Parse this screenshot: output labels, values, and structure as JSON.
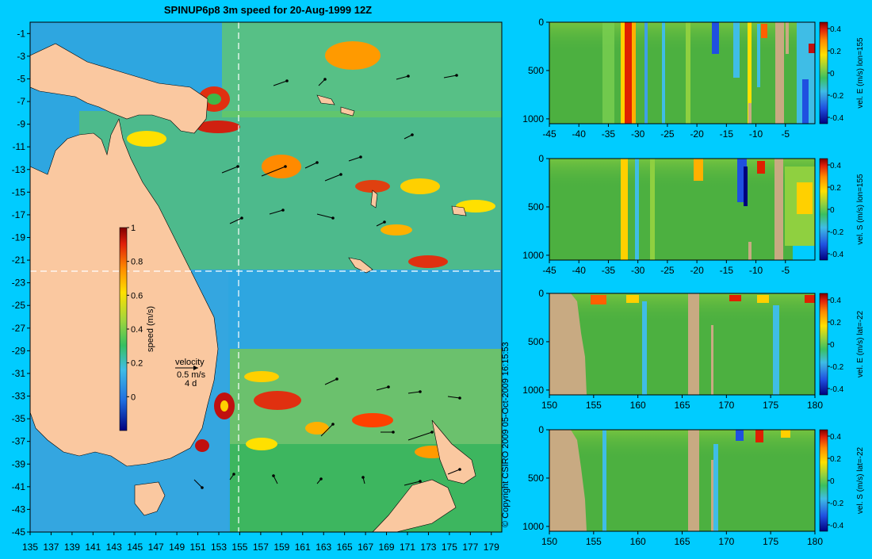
{
  "colors": {
    "background": "#00ccff",
    "land": "#fac8a0",
    "section_land": "#c8aa82",
    "water_base": "#2ea6e0",
    "crosshair": "#ffffff"
  },
  "chart_data": [
    {
      "type": "heatmap",
      "title": "SPINUP6p8 3m speed for 20-Aug-1999 12Z",
      "xlabel": "",
      "ylabel": "",
      "x_ticks": [
        "135",
        "137",
        "139",
        "141",
        "143",
        "145",
        "147",
        "149",
        "151",
        "153",
        "155",
        "157",
        "159",
        "161",
        "163",
        "165",
        "167",
        "169",
        "171",
        "173",
        "175",
        "177",
        "179"
      ],
      "y_ticks": [
        "-1",
        "-3",
        "-5",
        "-7",
        "-9",
        "-11",
        "-13",
        "-15",
        "-17",
        "-19",
        "-21",
        "-23",
        "-25",
        "-27",
        "-29",
        "-31",
        "-33",
        "-35",
        "-37",
        "-39",
        "-41",
        "-43",
        "-45"
      ],
      "xlim": [
        135,
        180
      ],
      "ylim": [
        -45,
        0
      ],
      "colorbar": {
        "label": "speed (m/s)",
        "range": [
          -0.2,
          1
        ],
        "ticks": [
          "1",
          "0.8",
          "0.6",
          "0.4",
          "0.2",
          "0"
        ]
      },
      "vector_legend": {
        "title": "velocity",
        "scale": "0.5 m/s",
        "interval": "4 d"
      },
      "section_lines": {
        "lon": 155,
        "lat": -22
      },
      "copyright": "© Copyright CSIRO 2009   05-Oct-2009 16:15:53"
    },
    {
      "type": "heatmap",
      "ylabel": "vel. E (m/s) lon=155",
      "x_ticks": [
        "-45",
        "-40",
        "-35",
        "-30",
        "-25",
        "-20",
        "-15",
        "-10",
        "-5"
      ],
      "xlim": [
        -45,
        0
      ],
      "y_ticks": [
        "0",
        "500",
        "1000"
      ],
      "ylim": [
        0,
        1050
      ],
      "colorbar_ticks": [
        "0.4",
        "0.2",
        "0",
        "-0.2",
        "-0.4"
      ]
    },
    {
      "type": "heatmap",
      "ylabel": "vel. S (m/s) lon=155",
      "x_ticks": [
        "-45",
        "-40",
        "-35",
        "-30",
        "-25",
        "-20",
        "-15",
        "-10",
        "-5"
      ],
      "xlim": [
        -45,
        0
      ],
      "y_ticks": [
        "0",
        "500",
        "1000"
      ],
      "ylim": [
        0,
        1050
      ],
      "colorbar_ticks": [
        "0.4",
        "0.2",
        "0",
        "-0.2",
        "-0.4"
      ]
    },
    {
      "type": "heatmap",
      "ylabel": "vel. E (m/s) lat=-22",
      "x_ticks": [
        "150",
        "155",
        "160",
        "165",
        "170",
        "175",
        "180"
      ],
      "xlim": [
        150,
        180
      ],
      "y_ticks": [
        "0",
        "500",
        "1000"
      ],
      "ylim": [
        0,
        1050
      ],
      "colorbar_ticks": [
        "0.4",
        "0.2",
        "0",
        "-0.2",
        "-0.4"
      ]
    },
    {
      "type": "heatmap",
      "ylabel": "vel. S (m/s) lat=-22",
      "x_ticks": [
        "150",
        "155",
        "160",
        "165",
        "170",
        "175",
        "180"
      ],
      "xlim": [
        150,
        180
      ],
      "y_ticks": [
        "0",
        "500",
        "1000"
      ],
      "ylim": [
        0,
        1050
      ],
      "colorbar_ticks": [
        "0.4",
        "0.2",
        "0",
        "-0.2",
        "-0.4"
      ]
    }
  ]
}
